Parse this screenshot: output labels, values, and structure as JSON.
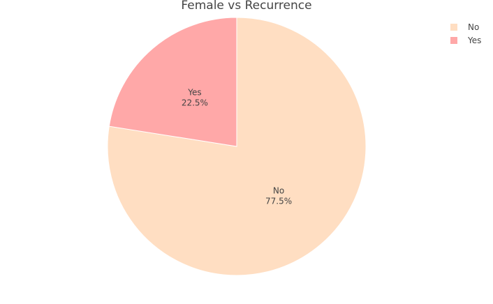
{
  "chart_data": {
    "type": "pie",
    "title": "Female vs Recurrence",
    "categories": [
      "No",
      "Yes"
    ],
    "values": [
      77.5,
      22.5
    ],
    "labels": [
      "77.5%",
      "22.5%"
    ],
    "colors": [
      "#ffdec2",
      "#ffa8a8"
    ],
    "legend": {
      "position": "top-right",
      "entries": [
        "No",
        "Yes"
      ]
    },
    "start_angle_deg": 0,
    "direction": "clockwise"
  }
}
